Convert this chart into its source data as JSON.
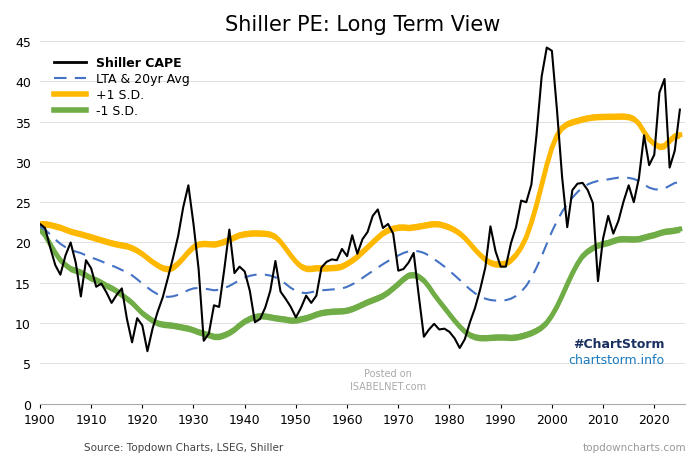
{
  "title": "Shiller PE: Long Term View",
  "ylim": [
    0,
    45
  ],
  "xlim": [
    1900,
    2026
  ],
  "xticks": [
    1900,
    1910,
    1920,
    1930,
    1940,
    1950,
    1960,
    1970,
    1980,
    1990,
    2000,
    2010,
    2020
  ],
  "yticks": [
    0,
    5,
    10,
    15,
    20,
    25,
    30,
    35,
    40,
    45
  ],
  "cape_color": "#000000",
  "lta_color": "#4472c4",
  "plus_sd_color": "#FFB800",
  "minus_sd_color": "#70AD47",
  "title_fontsize": 15,
  "source_text": "Source: Topdown Charts, LSEG, Shiller",
  "topdown_text": "topdowncharts.com",
  "background_color": "#ffffff",
  "grid_color": "#e0e0e0"
}
